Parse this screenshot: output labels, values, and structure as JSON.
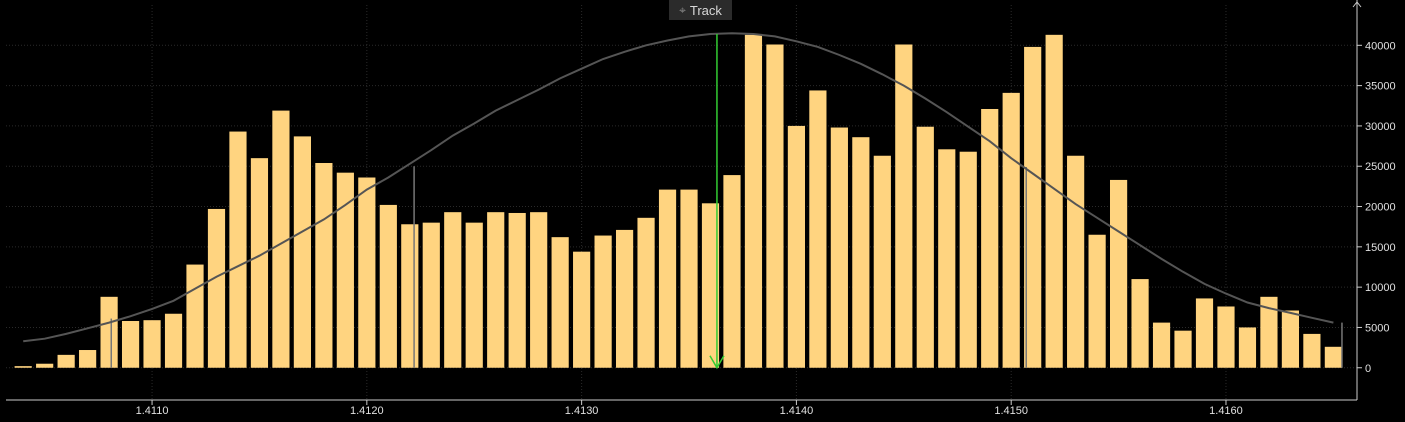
{
  "toolbar": {
    "track_label": "Track",
    "track_icon": "crosshair-icon"
  },
  "colors": {
    "background": "#000000",
    "bar": "#ffd480",
    "curve": "#555555",
    "marker": "#33cc33",
    "grid": "#2a2a2a",
    "axis": "#cccccc",
    "text": "#e0e0e0"
  },
  "chart_data": {
    "type": "bar",
    "title": "",
    "xlabel": "",
    "ylabel": "",
    "xlim": [
      1.41032,
      1.41661
    ],
    "ylim": [
      -4000,
      45000
    ],
    "bar_width": 8e-05,
    "x_ticks": [
      "1.4110",
      "1.4120",
      "1.4130",
      "1.4140",
      "1.4150",
      "1.4160"
    ],
    "y_ticks": [
      "0",
      "5000",
      "10000",
      "15000",
      "20000",
      "25000",
      "30000",
      "35000",
      "40000"
    ],
    "grid": true,
    "legend": "none",
    "x": [
      1.4104,
      1.4105,
      1.4106,
      1.4107,
      1.4108,
      1.4109,
      1.411,
      1.4111,
      1.4112,
      1.4113,
      1.4114,
      1.4115,
      1.4116,
      1.4117,
      1.4118,
      1.4119,
      1.412,
      1.4121,
      1.4122,
      1.4123,
      1.4124,
      1.4125,
      1.4126,
      1.4127,
      1.4128,
      1.4129,
      1.413,
      1.4131,
      1.4132,
      1.4133,
      1.4134,
      1.4135,
      1.4136,
      1.4137,
      1.4138,
      1.4139,
      1.414,
      1.4141,
      1.4142,
      1.4143,
      1.4144,
      1.4145,
      1.4146,
      1.4147,
      1.4148,
      1.4149,
      1.415,
      1.4151,
      1.4152,
      1.4153,
      1.4154,
      1.4155,
      1.4156,
      1.4157,
      1.4158,
      1.4159,
      1.416,
      1.4161,
      1.4162,
      1.4163,
      1.4164,
      1.4165
    ],
    "values": [
      200,
      500,
      1600,
      2200,
      8800,
      5800,
      5900,
      6700,
      12800,
      19700,
      29300,
      26000,
      31900,
      28700,
      25400,
      24200,
      23600,
      20200,
      17800,
      18000,
      19300,
      18000,
      19300,
      19200,
      19300,
      16200,
      14400,
      16400,
      17100,
      18600,
      22100,
      22100,
      20400,
      23900,
      41300,
      40100,
      30000,
      34400,
      29800,
      28600,
      26300,
      40100,
      29900,
      27100,
      26800,
      32100,
      34100,
      39800,
      41300,
      26300,
      16500,
      23300,
      11000,
      5600,
      4600,
      8600,
      7600,
      5000,
      8800,
      7100,
      4200,
      2600
    ],
    "series": [
      {
        "type": "line",
        "x": [
          1.4104,
          1.4105,
          1.4106,
          1.4107,
          1.4108,
          1.4109,
          1.411,
          1.4111,
          1.4112,
          1.4113,
          1.4114,
          1.4115,
          1.4116,
          1.4117,
          1.4118,
          1.4119,
          1.412,
          1.4121,
          1.4122,
          1.4123,
          1.4124,
          1.4125,
          1.4126,
          1.4127,
          1.4128,
          1.4129,
          1.413,
          1.4131,
          1.4132,
          1.4133,
          1.4134,
          1.4135,
          1.4136,
          1.4137,
          1.4138,
          1.4139,
          1.414,
          1.4141,
          1.4142,
          1.4143,
          1.4144,
          1.4145,
          1.4146,
          1.4147,
          1.4148,
          1.4149,
          1.415,
          1.4151,
          1.4152,
          1.4153,
          1.4154,
          1.4155,
          1.4156,
          1.4157,
          1.4158,
          1.4159,
          1.416,
          1.4161,
          1.4162,
          1.4163,
          1.4164,
          1.4165
        ],
        "values": [
          3300,
          3600,
          4200,
          4900,
          5600,
          6400,
          7300,
          8300,
          9800,
          11300,
          12600,
          13900,
          15400,
          16900,
          18400,
          20200,
          22100,
          23600,
          25300,
          27000,
          28800,
          30300,
          31900,
          33200,
          34500,
          35900,
          37100,
          38300,
          39200,
          40000,
          40600,
          41100,
          41400,
          41500,
          41400,
          41100,
          40500,
          39800,
          38800,
          37700,
          36400,
          35000,
          33400,
          31700,
          29900,
          28100,
          26000,
          24100,
          22200,
          20300,
          18600,
          16900,
          15200,
          13500,
          11900,
          10400,
          9200,
          8100,
          7400,
          6800,
          6200,
          5600
        ]
      }
    ],
    "annotations": {
      "drop_lines": [
        {
          "x": 1.41081,
          "value": 6100
        },
        {
          "x": 1.41222,
          "value": 25000
        },
        {
          "x": 1.41507,
          "value": 24900
        },
        {
          "x": 1.41654,
          "value": 5600
        }
      ],
      "marker": {
        "x": 1.41363,
        "top": 41400
      }
    }
  }
}
